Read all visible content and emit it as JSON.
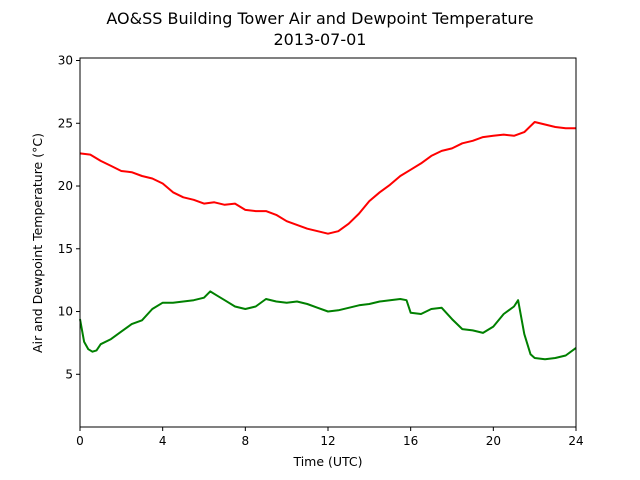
{
  "chart_data": {
    "type": "line",
    "title": "AO&SS Building Tower Air and Dewpoint Temperature",
    "subtitle": "2013-07-01",
    "xlabel": "Time (UTC)",
    "ylabel": "Air and Dewpoint Temperature (°C)",
    "xlim": [
      0,
      24
    ],
    "ylim": [
      0.8,
      30.2
    ],
    "xticks": [
      0,
      4,
      8,
      12,
      16,
      20,
      24
    ],
    "yticks": [
      5,
      10,
      15,
      20,
      25,
      30
    ],
    "grid": false,
    "legend": "none",
    "series": [
      {
        "color": "#ff0000",
        "x": [
          0,
          0.5,
          1,
          1.5,
          2,
          2.5,
          3,
          3.5,
          4,
          4.5,
          5,
          5.5,
          6,
          6.5,
          7,
          7.5,
          8,
          8.5,
          9,
          9.5,
          10,
          10.5,
          11,
          11.5,
          12,
          12.5,
          13,
          13.5,
          14,
          14.5,
          15,
          15.5,
          16,
          16.5,
          17,
          17.5,
          18,
          18.5,
          19,
          19.5,
          20,
          20.5,
          21,
          21.5,
          22,
          22.5,
          23,
          23.5,
          24
        ],
        "y": [
          22.6,
          22.5,
          22.0,
          21.6,
          21.2,
          21.1,
          20.8,
          20.6,
          20.2,
          19.5,
          19.1,
          18.9,
          18.6,
          18.7,
          18.5,
          18.6,
          18.1,
          18.0,
          18.0,
          17.7,
          17.2,
          16.9,
          16.6,
          16.4,
          16.2,
          16.4,
          17.0,
          17.8,
          18.8,
          19.5,
          20.1,
          20.8,
          21.3,
          21.8,
          22.4,
          22.8,
          23.0,
          23.4,
          23.6,
          23.9,
          24.0,
          24.1,
          24.0,
          24.3,
          25.1,
          24.9,
          24.7,
          24.6,
          24.6
        ]
      },
      {
        "color": "#008000",
        "x": [
          0,
          0.2,
          0.4,
          0.6,
          0.8,
          1,
          1.5,
          2,
          2.5,
          3,
          3.5,
          4,
          4.5,
          5,
          5.5,
          6,
          6.3,
          6.6,
          7,
          7.5,
          8,
          8.5,
          9,
          9.5,
          10,
          10.5,
          11,
          11.5,
          12,
          12.5,
          13,
          13.5,
          14,
          14.5,
          15,
          15.5,
          15.8,
          16,
          16.5,
          17,
          17.5,
          18,
          18.5,
          19,
          19.5,
          20,
          20.5,
          21,
          21.2,
          21.5,
          21.8,
          22,
          22.5,
          23,
          23.5,
          24
        ],
        "y": [
          9.4,
          7.6,
          7.0,
          6.8,
          6.9,
          7.4,
          7.8,
          8.4,
          9.0,
          9.3,
          10.2,
          10.7,
          10.7,
          10.8,
          10.9,
          11.1,
          11.6,
          11.3,
          10.9,
          10.4,
          10.2,
          10.4,
          11.0,
          10.8,
          10.7,
          10.8,
          10.6,
          10.3,
          10.0,
          10.1,
          10.3,
          10.5,
          10.6,
          10.8,
          10.9,
          11.0,
          10.9,
          9.9,
          9.8,
          10.2,
          10.3,
          9.4,
          8.6,
          8.5,
          8.3,
          8.8,
          9.8,
          10.4,
          10.9,
          8.2,
          6.6,
          6.3,
          6.2,
          6.3,
          6.5,
          7.1
        ]
      }
    ]
  }
}
